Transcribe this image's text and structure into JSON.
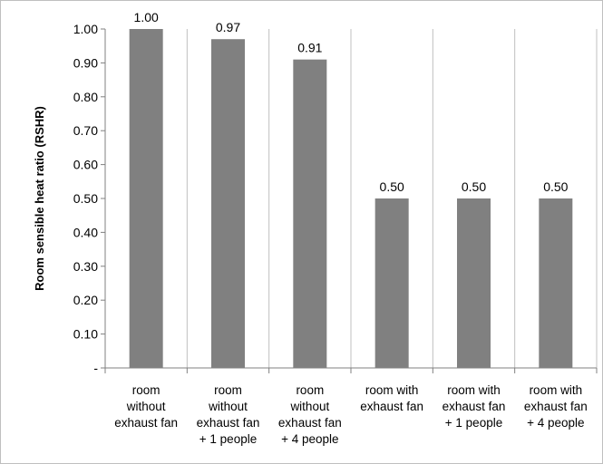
{
  "chart_data": {
    "type": "bar",
    "title": "",
    "xlabel": "",
    "ylabel": "Room sensible heat ratio (RSHR)",
    "categories": [
      [
        "room",
        "without",
        "exhaust fan"
      ],
      [
        "room",
        "without",
        "exhaust fan",
        "+ 1 people"
      ],
      [
        "room",
        "without",
        "exhaust fan",
        "+ 4 people"
      ],
      [
        "room with",
        "exhaust fan"
      ],
      [
        "room with",
        "exhaust fan",
        "+ 1 people"
      ],
      [
        "room with",
        "exhaust fan",
        "+ 4 people"
      ]
    ],
    "values": [
      1.0,
      0.97,
      0.91,
      0.5,
      0.5,
      0.5
    ],
    "data_labels": [
      "1.00",
      "0.97",
      "0.91",
      "0.50",
      "0.50",
      "0.50"
    ],
    "ylim": [
      0,
      1.0
    ],
    "yticks": [
      0,
      0.1,
      0.2,
      0.3,
      0.4,
      0.5,
      0.6,
      0.7,
      0.8,
      0.9,
      1.0
    ],
    "ytick_labels": [
      "-",
      "0.10",
      "0.20",
      "0.30",
      "0.40",
      "0.50",
      "0.60",
      "0.70",
      "0.80",
      "0.90",
      "1.00"
    ],
    "grid": "vertical",
    "legend": "none",
    "colors": {
      "bar": "#808080",
      "grid": "#c0c0c0",
      "axis": "#808080"
    }
  }
}
